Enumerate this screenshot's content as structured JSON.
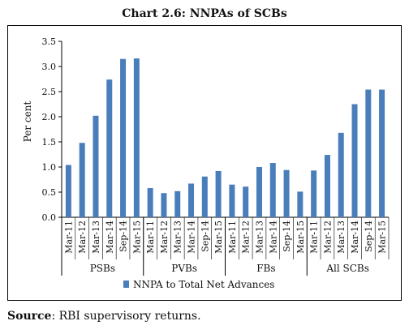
{
  "title": "Chart 2.6: NNPAs of SCBs",
  "source": {
    "label": "Source",
    "text": ": RBI supervisory returns."
  },
  "colors": {
    "bar": "#4a7ebb"
  },
  "chart_data": {
    "type": "bar",
    "title": "Chart 2.6: NNPAs of SCBs",
    "xlabel": "",
    "ylabel": "Per cent",
    "ylim": [
      0,
      3.5
    ],
    "yticks": [
      "0.0",
      "0.5",
      "1.0",
      "1.5",
      "2.0",
      "2.5",
      "3.0",
      "3.5"
    ],
    "grid": false,
    "legend_position": "bottom",
    "groups": [
      {
        "name": "PSBs",
        "categories": [
          "Mar-11",
          "Mar-12",
          "Mar-13",
          "Mar-14",
          "Sep-14",
          "Mar-15"
        ],
        "values": [
          1.04,
          1.48,
          2.02,
          2.74,
          3.15,
          3.16
        ]
      },
      {
        "name": "PVBs",
        "categories": [
          "Mar-11",
          "Mar-12",
          "Mar-13",
          "Mar-14",
          "Sep-14",
          "Mar-15"
        ],
        "values": [
          0.58,
          0.48,
          0.52,
          0.67,
          0.81,
          0.92
        ]
      },
      {
        "name": "FBs",
        "categories": [
          "Mar-11",
          "Mar-12",
          "Mar-13",
          "Mar-14",
          "Sep-14",
          "Mar-15"
        ],
        "values": [
          0.65,
          0.61,
          1.0,
          1.08,
          0.94,
          0.51
        ]
      },
      {
        "name": "All SCBs",
        "categories": [
          "Mar-11",
          "Mar-12",
          "Mar-13",
          "Mar-14",
          "Sep-14",
          "Mar-15"
        ],
        "values": [
          0.93,
          1.24,
          1.68,
          2.25,
          2.54,
          2.54
        ]
      }
    ],
    "series": [
      {
        "name": "NNPA to Total Net Advances"
      }
    ]
  }
}
